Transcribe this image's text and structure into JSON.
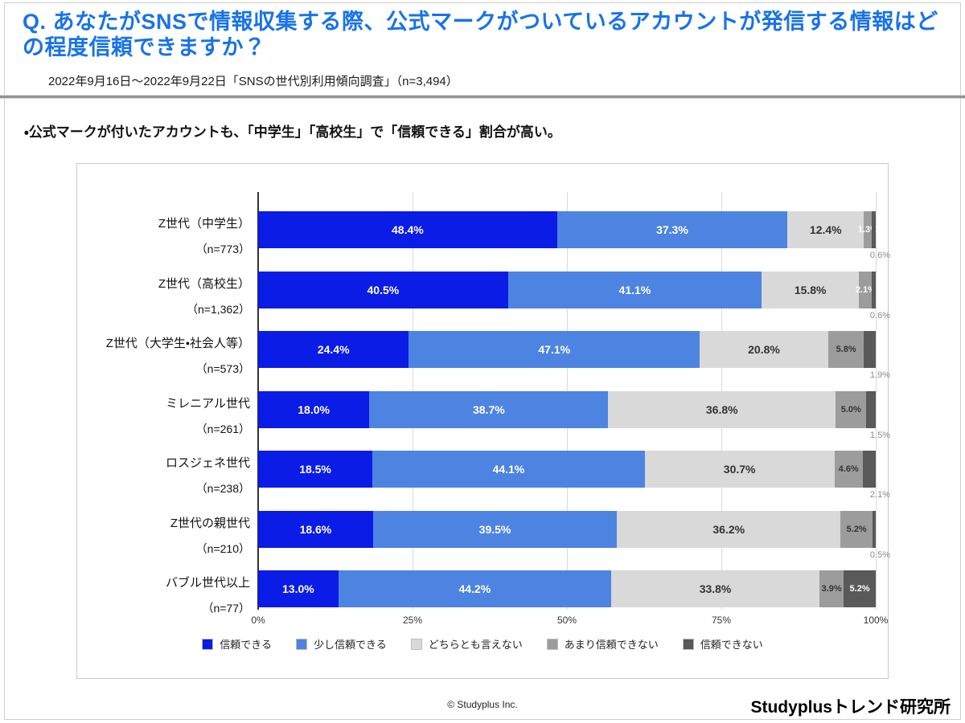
{
  "header": {
    "title": "Q. あなたがSNSで情報収集する際、公式マークがついているアカウントが発信する情報はどの程度信頼できますか？",
    "subtitle": "2022年9月16日～2022年9月22日「SNSの世代別利用傾向調査」（n=3,494）"
  },
  "note": "・公式マークが付いたアカウントも、「中学生」「高校生」で「信頼できる」割合が高い。",
  "footer": {
    "copyright": "© Studyplus Inc.",
    "brand": "Studyplusトレンド研究所"
  },
  "colors": {
    "title_blue": "#1873e8",
    "gridline": "#d9d9d9",
    "axis_line": "#333333",
    "outside_label": "#8c8c8c"
  },
  "chart_data": {
    "type": "bar",
    "orientation": "horizontal-stacked",
    "title": "",
    "xlabel": "",
    "ylabel": "",
    "xlim": [
      0,
      100
    ],
    "x_ticks": [
      "0%",
      "25%",
      "50%",
      "75%",
      "100%"
    ],
    "grid": true,
    "legend_position": "bottom",
    "categories": [
      "Z世代（中学生）",
      "Z世代（高校生）",
      "Z世代（大学生・社会人等）",
      "ミレニアル世代",
      "ロスジェネ世代",
      "Z世代の親世代",
      "バブル世代以上"
    ],
    "category_sublabels": [
      "（n=773）",
      "（n=1,362）",
      "（n=573）",
      "（n=261）",
      "（n=238）",
      "（n=210）",
      "（n=77）"
    ],
    "series": [
      {
        "name": "信頼できる",
        "color": "#0a1ce6",
        "values": [
          48.4,
          40.5,
          24.4,
          18.0,
          18.5,
          18.6,
          13.0
        ]
      },
      {
        "name": "少し信頼できる",
        "color": "#4e84e1",
        "values": [
          37.3,
          41.1,
          47.1,
          38.7,
          44.1,
          39.5,
          44.2
        ]
      },
      {
        "name": "どちらとも言えない",
        "color": "#d9d9d9",
        "values": [
          12.4,
          15.8,
          20.8,
          36.8,
          30.7,
          36.2,
          33.8
        ]
      },
      {
        "name": "あまり信頼できない",
        "color": "#9c9c9c",
        "values": [
          1.3,
          2.1,
          5.8,
          5.0,
          4.6,
          5.2,
          3.9
        ]
      },
      {
        "name": "信頼できない",
        "color": "#595959",
        "values": [
          0.6,
          0.6,
          1.9,
          1.5,
          2.1,
          0.5,
          5.2
        ]
      }
    ]
  }
}
